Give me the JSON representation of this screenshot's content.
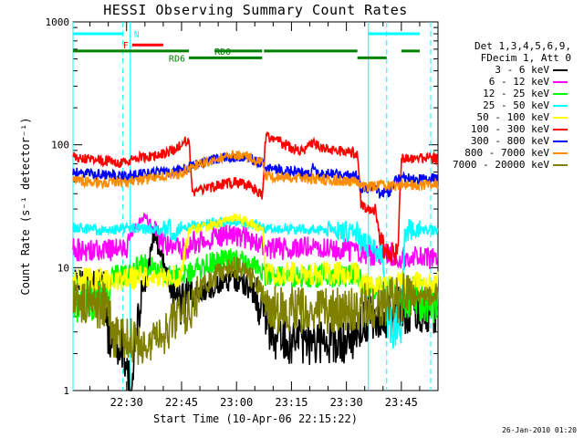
{
  "chart_data": {
    "type": "line",
    "title": "HESSI Observing Summary Count Rates",
    "xlabel": "Start Time (10-Apr-06 22:15:22)",
    "ylabel": "Count Rate (s⁻¹ detector⁻¹)",
    "y_scale": "log",
    "ylim": [
      1,
      1000
    ],
    "xlim": [
      "22:15:22",
      "23:55:00"
    ],
    "x_ticks": [
      "22:30",
      "22:45",
      "23:00",
      "23:15",
      "23:30",
      "23:45"
    ],
    "y_ticks": [
      "1",
      "10",
      "100",
      "1000"
    ],
    "legend_header": [
      "Det 1,3,4,5,6,9,",
      "FDecim 1, Att 0"
    ],
    "legend_position": "right",
    "series": [
      {
        "name": "3 - 6 keV",
        "color": "#000000",
        "points": [
          [
            "22:15:22",
            8
          ],
          [
            "22:24",
            8
          ],
          [
            "22:25",
            2.5
          ],
          [
            "22:29",
            2.3
          ],
          [
            "22:30",
            1.4
          ],
          [
            "22:31",
            1.0
          ],
          [
            "22:32",
            2
          ],
          [
            "22:34",
            5
          ],
          [
            "22:35",
            7
          ],
          [
            "22:36",
            10
          ],
          [
            "22:37",
            16
          ],
          [
            "22:38",
            18
          ],
          [
            "22:39",
            14
          ],
          [
            "22:40",
            11
          ],
          [
            "22:41",
            9
          ],
          [
            "22:42",
            7
          ],
          [
            "22:43",
            5.5
          ],
          [
            "22:44",
            5
          ],
          [
            "22:46",
            5.5
          ],
          [
            "22:48",
            6
          ],
          [
            "22:50",
            6.5
          ],
          [
            "22:53",
            7
          ],
          [
            "22:56",
            7.5
          ],
          [
            "22:59",
            8
          ],
          [
            "23:02",
            7.5
          ],
          [
            "23:05",
            6
          ],
          [
            "23:07",
            4.5
          ],
          [
            "23:09",
            3
          ],
          [
            "23:11",
            2.6
          ],
          [
            "23:15",
            2.5
          ],
          [
            "23:20",
            2.5
          ],
          [
            "23:25",
            2.5
          ],
          [
            "23:30",
            2.6
          ],
          [
            "23:33",
            3
          ],
          [
            "23:34",
            3.5
          ],
          [
            "23:36",
            4
          ],
          [
            "23:40",
            4
          ],
          [
            "23:44",
            4.5
          ],
          [
            "23:48",
            4.5
          ],
          [
            "23:50",
            4.5
          ]
        ]
      },
      {
        "name": "6 - 12 keV",
        "color": "#ff00ff",
        "points": [
          [
            "22:15:22",
            14
          ],
          [
            "22:25",
            14
          ],
          [
            "22:27",
            14
          ],
          [
            "22:30",
            14
          ],
          [
            "22:32",
            20
          ],
          [
            "22:34",
            25
          ],
          [
            "22:35",
            26
          ],
          [
            "22:37",
            22
          ],
          [
            "22:39",
            17
          ],
          [
            "22:42",
            15
          ],
          [
            "22:46",
            14
          ],
          [
            "22:48",
            16
          ],
          [
            "22:52",
            17
          ],
          [
            "22:56",
            18
          ],
          [
            "22:59",
            18.5
          ],
          [
            "23:02",
            17.5
          ],
          [
            "23:05",
            16
          ],
          [
            "23:07",
            15
          ],
          [
            "23:10",
            14.5
          ],
          [
            "23:15",
            14
          ],
          [
            "23:20",
            14.5
          ],
          [
            "23:25",
            14
          ],
          [
            "23:30",
            14
          ],
          [
            "23:33",
            13.5
          ],
          [
            "23:34",
            13
          ],
          [
            "23:36",
            12.5
          ],
          [
            "23:39",
            13
          ],
          [
            "23:42",
            13
          ],
          [
            "23:45",
            12
          ],
          [
            "23:48",
            12
          ],
          [
            "23:50",
            12
          ]
        ]
      },
      {
        "name": "12 - 25 keV",
        "color": "#00ff00",
        "points": [
          [
            "22:15:22",
            5.5
          ],
          [
            "22:25",
            5.5
          ],
          [
            "22:26",
            8.5
          ],
          [
            "22:30",
            8.5
          ],
          [
            "22:34",
            10.5
          ],
          [
            "22:37",
            10
          ],
          [
            "22:40",
            9
          ],
          [
            "22:45",
            8.5
          ],
          [
            "22:47",
            9
          ],
          [
            "22:50",
            10
          ],
          [
            "22:54",
            11
          ],
          [
            "22:58",
            11.5
          ],
          [
            "23:02",
            11
          ],
          [
            "23:05",
            10
          ],
          [
            "23:07",
            9
          ],
          [
            "23:10",
            8.5
          ],
          [
            "23:15",
            8.5
          ],
          [
            "23:20",
            8.5
          ],
          [
            "23:25",
            8.5
          ],
          [
            "23:30",
            8.5
          ],
          [
            "23:33",
            9
          ],
          [
            "23:35",
            7
          ],
          [
            "23:40",
            7
          ],
          [
            "23:43",
            6.5
          ],
          [
            "23:45",
            6
          ],
          [
            "23:48",
            5.8
          ],
          [
            "23:50",
            5.5
          ]
        ]
      },
      {
        "name": "25 - 50 keV",
        "color": "#00ffff",
        "points": [
          [
            "22:15:22",
            21
          ],
          [
            "22:25",
            20
          ],
          [
            "22:30",
            21
          ],
          [
            "22:35",
            21
          ],
          [
            "22:40",
            20
          ],
          [
            "22:45",
            20
          ],
          [
            "22:47",
            22
          ],
          [
            "22:50",
            23
          ],
          [
            "22:55",
            23.5
          ],
          [
            "23:00",
            24
          ],
          [
            "23:05",
            22.5
          ],
          [
            "23:08",
            21
          ],
          [
            "23:10",
            21
          ],
          [
            "23:15",
            20.5
          ],
          [
            "23:20",
            20.5
          ],
          [
            "23:25",
            20
          ],
          [
            "23:30",
            20
          ],
          [
            "23:33",
            20
          ],
          [
            "23:34",
            16
          ],
          [
            "23:36",
            15
          ],
          [
            "23:38",
            14
          ],
          [
            "23:40",
            12
          ],
          [
            "23:41",
            4
          ],
          [
            "23:43",
            3
          ],
          [
            "23:45",
            3.5
          ],
          [
            "23:46",
            20
          ],
          [
            "23:50",
            20
          ]
        ]
      },
      {
        "name": "50 - 100 keV",
        "color": "#ffff00",
        "points": [
          [
            "22:15:22",
            8
          ],
          [
            "22:25",
            8
          ],
          [
            "22:30",
            8
          ],
          [
            "22:35",
            8.5
          ],
          [
            "22:40",
            8.5
          ],
          [
            "22:45",
            8.5
          ],
          [
            "22:47",
            20
          ],
          [
            "22:50",
            21
          ],
          [
            "22:55",
            23
          ],
          [
            "23:00",
            25
          ],
          [
            "23:04",
            23
          ],
          [
            "23:07",
            20
          ],
          [
            "23:08",
            9
          ],
          [
            "23:15",
            9
          ],
          [
            "23:20",
            9
          ],
          [
            "23:25",
            9
          ],
          [
            "23:30",
            9
          ],
          [
            "23:33",
            9
          ],
          [
            "23:34",
            7.5
          ],
          [
            "23:38",
            7
          ],
          [
            "23:41",
            7
          ],
          [
            "23:43",
            7.5
          ],
          [
            "23:45",
            7.5
          ],
          [
            "23:50",
            7.5
          ]
        ]
      },
      {
        "name": "100 - 300 keV",
        "color": "#ff0000",
        "points": [
          [
            "22:15:22",
            80
          ],
          [
            "22:20",
            77
          ],
          [
            "22:25",
            74
          ],
          [
            "22:29",
            70
          ],
          [
            "22:30",
            72
          ],
          [
            "22:33",
            78
          ],
          [
            "22:37",
            82
          ],
          [
            "22:41",
            86
          ],
          [
            "22:45",
            100
          ],
          [
            "22:47",
            113
          ],
          [
            "22:48",
            40
          ],
          [
            "22:50",
            42
          ],
          [
            "22:55",
            47
          ],
          [
            "23:00",
            50
          ],
          [
            "23:04",
            46
          ],
          [
            "23:07",
            38
          ],
          [
            "23:08",
            118
          ],
          [
            "23:11",
            108
          ],
          [
            "23:15",
            95
          ],
          [
            "23:18",
            90
          ],
          [
            "23:21",
            104
          ],
          [
            "23:23",
            94
          ],
          [
            "23:27",
            90
          ],
          [
            "23:30",
            87
          ],
          [
            "23:33",
            86
          ],
          [
            "23:34",
            32
          ],
          [
            "23:36",
            30
          ],
          [
            "23:38",
            30
          ],
          [
            "23:39",
            17
          ],
          [
            "23:41",
            13
          ],
          [
            "23:44",
            13
          ],
          [
            "23:45",
            78
          ],
          [
            "23:50",
            78
          ]
        ]
      },
      {
        "name": "300 - 800 keV",
        "color": "#0000ff",
        "points": [
          [
            "22:15:22",
            60
          ],
          [
            "22:25",
            57
          ],
          [
            "22:30",
            56
          ],
          [
            "22:35",
            58
          ],
          [
            "22:40",
            60
          ],
          [
            "22:45",
            62
          ],
          [
            "22:47",
            66
          ],
          [
            "22:50",
            70
          ],
          [
            "22:55",
            77
          ],
          [
            "23:00",
            80
          ],
          [
            "23:04",
            77
          ],
          [
            "23:07",
            71
          ],
          [
            "23:08",
            64
          ],
          [
            "23:12",
            62
          ],
          [
            "23:17",
            60
          ],
          [
            "23:20",
            57
          ],
          [
            "23:21",
            68
          ],
          [
            "23:22",
            58
          ],
          [
            "23:26",
            58
          ],
          [
            "23:30",
            57
          ],
          [
            "23:33",
            56
          ],
          [
            "23:34",
            44
          ],
          [
            "23:37",
            45
          ],
          [
            "23:38",
            46
          ],
          [
            "23:39",
            40
          ],
          [
            "23:42",
            42
          ],
          [
            "23:43",
            50
          ],
          [
            "23:45",
            53
          ],
          [
            "23:50",
            53
          ]
        ]
      },
      {
        "name": "800 - 7000 keV",
        "color": "#ff8c00",
        "points": [
          [
            "22:15:22",
            52
          ],
          [
            "22:20",
            50
          ],
          [
            "22:25",
            49
          ],
          [
            "22:30",
            50
          ],
          [
            "22:35",
            52
          ],
          [
            "22:40",
            56
          ],
          [
            "22:45",
            58
          ],
          [
            "22:47",
            64
          ],
          [
            "22:50",
            70
          ],
          [
            "22:55",
            78
          ],
          [
            "23:00",
            82
          ],
          [
            "23:04",
            78
          ],
          [
            "23:07",
            70
          ],
          [
            "23:08",
            56
          ],
          [
            "23:12",
            54
          ],
          [
            "23:17",
            54
          ],
          [
            "23:20",
            53
          ],
          [
            "23:22",
            52
          ],
          [
            "23:26",
            52
          ],
          [
            "23:30",
            50
          ],
          [
            "23:33",
            50
          ],
          [
            "23:34",
            45
          ],
          [
            "23:37",
            46
          ],
          [
            "23:40",
            47
          ],
          [
            "23:43",
            46
          ],
          [
            "23:45",
            47
          ],
          [
            "23:50",
            47
          ]
        ]
      },
      {
        "name": "7000 - 20000 keV",
        "color": "#808000",
        "points": [
          [
            "22:15:22",
            5
          ],
          [
            "22:25",
            5
          ],
          [
            "22:26",
            2.8
          ],
          [
            "22:28",
            2.5
          ],
          [
            "22:32",
            2.5
          ],
          [
            "22:36",
            2.5
          ],
          [
            "22:38",
            2.8
          ],
          [
            "22:40",
            3
          ],
          [
            "22:42",
            3.5
          ],
          [
            "22:44",
            4
          ],
          [
            "22:46",
            4.5
          ],
          [
            "22:48",
            5
          ],
          [
            "22:50",
            6.5
          ],
          [
            "22:53",
            8
          ],
          [
            "22:56",
            9.5
          ],
          [
            "22:59",
            10
          ],
          [
            "23:02",
            9.5
          ],
          [
            "23:05",
            8
          ],
          [
            "23:07",
            6
          ],
          [
            "23:09",
            5
          ],
          [
            "23:12",
            4.5
          ],
          [
            "23:17",
            4.5
          ],
          [
            "23:22",
            4.5
          ],
          [
            "23:27",
            4.5
          ],
          [
            "23:30",
            4.5
          ],
          [
            "23:33",
            4.5
          ],
          [
            "23:35",
            4.8
          ],
          [
            "23:38",
            5
          ],
          [
            "23:41",
            5.2
          ],
          [
            "23:44",
            5.5
          ],
          [
            "23:46",
            5.8
          ],
          [
            "23:48",
            6
          ],
          [
            "23:50",
            6
          ]
        ]
      }
    ],
    "state_bars": [
      {
        "label": "N",
        "color": "#00ffff",
        "y": 800,
        "label_at": "22:31",
        "label_side": "right",
        "segments": [
          [
            "22:15:22",
            "22:29"
          ],
          [
            "23:36",
            "23:50"
          ]
        ]
      },
      {
        "label": "F",
        "color": "#ff0000",
        "y": 650,
        "label_at": "22:31:30",
        "label_side": "left",
        "segments": [
          [
            "22:31:30",
            "22:40"
          ]
        ]
      },
      {
        "label": "RD0",
        "color": "#008000",
        "y": 580,
        "label_at": "22:53",
        "label_side": "right",
        "segments": [
          [
            "22:15:22",
            "22:47"
          ],
          [
            "22:54",
            "23:07"
          ],
          [
            "23:07:30",
            "23:33"
          ],
          [
            "23:45",
            "23:50"
          ]
        ]
      },
      {
        "label": "RD6",
        "color": "#008000",
        "y": 510,
        "label_at": "22:47",
        "label_side": "left",
        "segments": [
          [
            "22:47",
            "23:07"
          ],
          [
            "23:33",
            "23:41"
          ]
        ]
      }
    ],
    "vlines": [
      {
        "time": "22:15:22",
        "style": "solid"
      },
      {
        "time": "22:29",
        "style": "dashed"
      },
      {
        "time": "22:31",
        "style": "solid"
      },
      {
        "time": "23:36",
        "style": "solid"
      },
      {
        "time": "23:41",
        "style": "dashed"
      },
      {
        "time": "23:53",
        "style": "dashed"
      }
    ]
  },
  "footer_timestamp": "26-Jan-2010 01:20"
}
